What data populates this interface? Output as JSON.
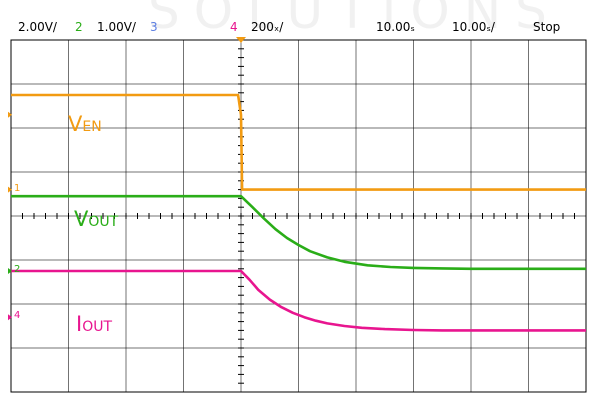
{
  "header": {
    "ch1_scale": "2.00V/",
    "ch2_num": "2",
    "ch2_scale": "1.00V/",
    "ch3_num": "3",
    "ch4_num": "4",
    "ch4_scale": "200ₓ/",
    "timebase": "10.00ₛ",
    "timebase_div": "10.00ₛ/",
    "run_state": "Stop"
  },
  "watermark": "SOLUTIONS",
  "colors": {
    "ch1": "#f29b12",
    "ch2": "#2aad18",
    "ch3": "#5b7de2",
    "ch4": "#e8158f",
    "grid": "#000000",
    "trigger": "#f29b12"
  },
  "markers": {
    "ch1": "1",
    "ch2": "2",
    "ch4": "4"
  },
  "chart_data": {
    "type": "line",
    "title": "",
    "xlabel": "",
    "ylabel": "",
    "grid": true,
    "divisions": {
      "x": 10,
      "y": 8
    },
    "xlim": [
      -4,
      6
    ],
    "ylim": [
      -4,
      4
    ],
    "x_unit": "div",
    "y_unit": "div",
    "trigger_x": 0,
    "series": [
      {
        "channel": "1",
        "label_main": "V",
        "label_sub": "EN",
        "color": "#f29b12",
        "ground_div": 0.6,
        "x": [
          -4,
          -0.05,
          0.0,
          0.02,
          6
        ],
        "y": [
          2.75,
          2.75,
          2.3,
          0.6,
          0.6
        ]
      },
      {
        "channel": "2",
        "label_main": "V",
        "label_sub": "OUT",
        "color": "#2aad18",
        "ground_div": -1.25,
        "x": [
          -4,
          -0.05,
          0.0,
          0.2,
          0.4,
          0.6,
          0.8,
          1.0,
          1.2,
          1.5,
          1.8,
          2.2,
          2.6,
          3.0,
          3.5,
          4.0,
          6
        ],
        "y": [
          0.45,
          0.45,
          0.45,
          0.2,
          -0.06,
          -0.3,
          -0.5,
          -0.66,
          -0.8,
          -0.94,
          -1.04,
          -1.12,
          -1.16,
          -1.18,
          -1.19,
          -1.2,
          -1.2
        ]
      },
      {
        "channel": "4",
        "label_main": "I",
        "label_sub": "OUT",
        "color": "#e8158f",
        "ground_div": -2.3,
        "x": [
          -4,
          -0.05,
          0.0,
          0.15,
          0.3,
          0.5,
          0.7,
          0.9,
          1.1,
          1.3,
          1.5,
          1.8,
          2.1,
          2.5,
          3.0,
          3.5,
          4.0,
          6
        ],
        "y": [
          -1.25,
          -1.25,
          -1.25,
          -1.45,
          -1.68,
          -1.9,
          -2.07,
          -2.2,
          -2.3,
          -2.38,
          -2.44,
          -2.5,
          -2.54,
          -2.57,
          -2.59,
          -2.6,
          -2.6,
          -2.6
        ]
      }
    ]
  }
}
